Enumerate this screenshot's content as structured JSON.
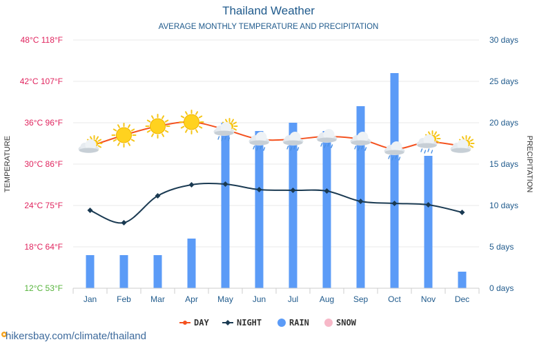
{
  "chart_data": {
    "type": "bar",
    "title": "Thailand Weather",
    "subtitle": "AVERAGE MONTHLY TEMPERATURE AND PRECIPITATION",
    "ylabel_left": "TEMPERATURE",
    "ylabel_right": "PRECIPITATION",
    "categories": [
      "Jan",
      "Feb",
      "Mar",
      "Apr",
      "May",
      "Jun",
      "Jul",
      "Aug",
      "Sep",
      "Oct",
      "Nov",
      "Dec"
    ],
    "left_axis": {
      "ylim": [
        12,
        48
      ],
      "ticks": [
        {
          "value": 12,
          "label": "12°C 53°F",
          "color": "#55b33a"
        },
        {
          "value": 18,
          "label": "18°C 64°F",
          "color": "#e0245e"
        },
        {
          "value": 24,
          "label": "24°C 75°F",
          "color": "#e0245e"
        },
        {
          "value": 30,
          "label": "30°C 86°F",
          "color": "#e0245e"
        },
        {
          "value": 36,
          "label": "36°C 96°F",
          "color": "#e0245e"
        },
        {
          "value": 42,
          "label": "42°C 107°F",
          "color": "#e0245e"
        },
        {
          "value": 48,
          "label": "48°C 118°F",
          "color": "#e0245e"
        }
      ]
    },
    "right_axis": {
      "ylim": [
        0,
        30
      ],
      "ticks": [
        {
          "value": 0,
          "label": "0 days"
        },
        {
          "value": 5,
          "label": "5 days"
        },
        {
          "value": 10,
          "label": "10 days"
        },
        {
          "value": 15,
          "label": "15 days"
        },
        {
          "value": 20,
          "label": "20 days"
        },
        {
          "value": 25,
          "label": "25 days"
        },
        {
          "value": 30,
          "label": "30 days"
        }
      ]
    },
    "series": [
      {
        "name": "DAY",
        "kind": "line",
        "axis": "left",
        "color": "#f4511e",
        "values": [
          32.6,
          34.2,
          35.5,
          36.1,
          35.0,
          33.6,
          33.6,
          34.0,
          33.6,
          32.2,
          33.2,
          32.6
        ]
      },
      {
        "name": "NIGHT",
        "kind": "line",
        "axis": "left",
        "color": "#1a3a52",
        "values": [
          23.3,
          21.5,
          25.4,
          27.0,
          27.1,
          26.3,
          26.2,
          26.1,
          24.6,
          24.3,
          24.1,
          23.0
        ]
      },
      {
        "name": "RAIN",
        "kind": "bar",
        "axis": "right",
        "color": "#5b9bf7",
        "values": [
          4,
          4,
          4,
          6,
          20,
          19,
          20,
          19,
          22,
          26,
          16,
          2
        ]
      },
      {
        "name": "SNOW",
        "kind": "bar",
        "axis": "right",
        "color": "#f7b8c8",
        "values": [
          0,
          0,
          0,
          0,
          0,
          0,
          0,
          0,
          0,
          0,
          0,
          0
        ]
      }
    ],
    "weather_icons": [
      "sun-cloud",
      "sun",
      "sun",
      "sun",
      "sun-cloud-rain",
      "cloud-rain",
      "cloud-rain",
      "cloud-rain",
      "cloud-rain",
      "cloud-rain",
      "sun-cloud-rain",
      "sun-cloud"
    ],
    "legend": [
      "DAY",
      "NIGHT",
      "RAIN",
      "SNOW"
    ],
    "grid": true
  },
  "colors": {
    "title": "#1f5a8c",
    "subtitle": "#1f5a8c",
    "right_axis": "#1f5a8c",
    "axis_title": "#333333",
    "xtick": "#1f5a8c",
    "grid": "#e8e8e8",
    "footer": "#3d6a9c"
  },
  "footer": {
    "text": "hikersbay.com/climate/thailand"
  }
}
